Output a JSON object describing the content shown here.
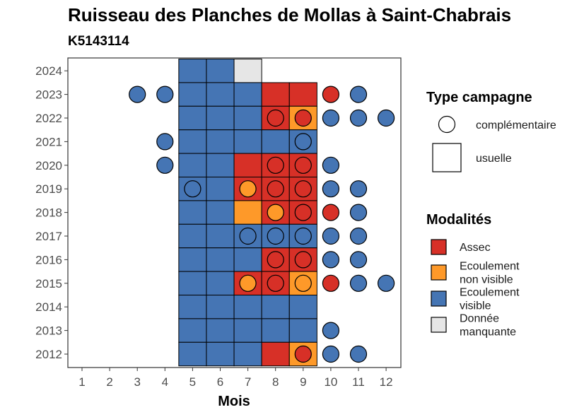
{
  "chart_data": {
    "type": "heatmap",
    "title": "Ruisseau des Planches de Mollas à Saint-Chabrais",
    "subtitle": "K5143114",
    "xlabel": "Mois",
    "ylabel": "",
    "x_ticks": [
      "1",
      "2",
      "3",
      "4",
      "5",
      "6",
      "7",
      "8",
      "9",
      "10",
      "11",
      "12"
    ],
    "y_ticks": [
      "2012",
      "2013",
      "2014",
      "2015",
      "2016",
      "2017",
      "2018",
      "2019",
      "2020",
      "2021",
      "2022",
      "2023",
      "2024"
    ],
    "grid": false,
    "legend_placement": "right",
    "colors": {
      "Assec": "#d73027",
      "Ecoulement non visible": "#fe9929",
      "Ecoulement visible": "#4575b4",
      "Donnée manquante": "#e6e6e6"
    },
    "legend_type": {
      "title": "Type campagne",
      "items": [
        {
          "label": "complémentaire",
          "shape": "circle"
        },
        {
          "label": "usuelle",
          "shape": "square"
        }
      ]
    },
    "legend_modalites": {
      "title": "Modalités",
      "items": [
        {
          "key": "Assec",
          "lines": [
            "Assec"
          ]
        },
        {
          "key": "Ecoulement non visible",
          "lines": [
            "Ecoulement",
            "non visible"
          ]
        },
        {
          "key": "Ecoulement visible",
          "lines": [
            "Ecoulement",
            "visible"
          ]
        },
        {
          "key": "Donnée manquante",
          "lines": [
            "Donnée",
            "manquante"
          ]
        }
      ]
    },
    "usuelle": [
      {
        "year": 2024,
        "month": 5,
        "status": "Ecoulement visible"
      },
      {
        "year": 2024,
        "month": 6,
        "status": "Ecoulement visible"
      },
      {
        "year": 2024,
        "month": 7,
        "status": "Donnée manquante"
      },
      {
        "year": 2023,
        "month": 5,
        "status": "Ecoulement visible"
      },
      {
        "year": 2023,
        "month": 6,
        "status": "Ecoulement visible"
      },
      {
        "year": 2023,
        "month": 7,
        "status": "Ecoulement visible"
      },
      {
        "year": 2023,
        "month": 8,
        "status": "Assec"
      },
      {
        "year": 2023,
        "month": 9,
        "status": "Assec"
      },
      {
        "year": 2022,
        "month": 5,
        "status": "Ecoulement visible"
      },
      {
        "year": 2022,
        "month": 6,
        "status": "Ecoulement visible"
      },
      {
        "year": 2022,
        "month": 7,
        "status": "Ecoulement visible"
      },
      {
        "year": 2022,
        "month": 8,
        "status": "Assec"
      },
      {
        "year": 2022,
        "month": 9,
        "status": "Ecoulement non visible"
      },
      {
        "year": 2021,
        "month": 5,
        "status": "Ecoulement visible"
      },
      {
        "year": 2021,
        "month": 6,
        "status": "Ecoulement visible"
      },
      {
        "year": 2021,
        "month": 7,
        "status": "Ecoulement visible"
      },
      {
        "year": 2021,
        "month": 8,
        "status": "Ecoulement visible"
      },
      {
        "year": 2021,
        "month": 9,
        "status": "Ecoulement visible"
      },
      {
        "year": 2020,
        "month": 5,
        "status": "Ecoulement visible"
      },
      {
        "year": 2020,
        "month": 6,
        "status": "Ecoulement visible"
      },
      {
        "year": 2020,
        "month": 7,
        "status": "Assec"
      },
      {
        "year": 2020,
        "month": 8,
        "status": "Assec"
      },
      {
        "year": 2020,
        "month": 9,
        "status": "Assec"
      },
      {
        "year": 2019,
        "month": 5,
        "status": "Ecoulement visible"
      },
      {
        "year": 2019,
        "month": 6,
        "status": "Ecoulement visible"
      },
      {
        "year": 2019,
        "month": 7,
        "status": "Assec"
      },
      {
        "year": 2019,
        "month": 8,
        "status": "Assec"
      },
      {
        "year": 2019,
        "month": 9,
        "status": "Assec"
      },
      {
        "year": 2018,
        "month": 5,
        "status": "Ecoulement visible"
      },
      {
        "year": 2018,
        "month": 6,
        "status": "Ecoulement visible"
      },
      {
        "year": 2018,
        "month": 7,
        "status": "Ecoulement non visible"
      },
      {
        "year": 2018,
        "month": 8,
        "status": "Assec"
      },
      {
        "year": 2018,
        "month": 9,
        "status": "Assec"
      },
      {
        "year": 2017,
        "month": 5,
        "status": "Ecoulement visible"
      },
      {
        "year": 2017,
        "month": 6,
        "status": "Ecoulement visible"
      },
      {
        "year": 2017,
        "month": 7,
        "status": "Ecoulement visible"
      },
      {
        "year": 2017,
        "month": 8,
        "status": "Ecoulement visible"
      },
      {
        "year": 2017,
        "month": 9,
        "status": "Ecoulement visible"
      },
      {
        "year": 2016,
        "month": 5,
        "status": "Ecoulement visible"
      },
      {
        "year": 2016,
        "month": 6,
        "status": "Ecoulement visible"
      },
      {
        "year": 2016,
        "month": 7,
        "status": "Ecoulement visible"
      },
      {
        "year": 2016,
        "month": 8,
        "status": "Assec"
      },
      {
        "year": 2016,
        "month": 9,
        "status": "Assec"
      },
      {
        "year": 2015,
        "month": 5,
        "status": "Ecoulement visible"
      },
      {
        "year": 2015,
        "month": 6,
        "status": "Ecoulement visible"
      },
      {
        "year": 2015,
        "month": 7,
        "status": "Assec"
      },
      {
        "year": 2015,
        "month": 8,
        "status": "Assec"
      },
      {
        "year": 2015,
        "month": 9,
        "status": "Ecoulement non visible"
      },
      {
        "year": 2014,
        "month": 5,
        "status": "Ecoulement visible"
      },
      {
        "year": 2014,
        "month": 6,
        "status": "Ecoulement visible"
      },
      {
        "year": 2014,
        "month": 7,
        "status": "Ecoulement visible"
      },
      {
        "year": 2014,
        "month": 8,
        "status": "Ecoulement visible"
      },
      {
        "year": 2014,
        "month": 9,
        "status": "Ecoulement visible"
      },
      {
        "year": 2013,
        "month": 5,
        "status": "Ecoulement visible"
      },
      {
        "year": 2013,
        "month": 6,
        "status": "Ecoulement visible"
      },
      {
        "year": 2013,
        "month": 7,
        "status": "Ecoulement visible"
      },
      {
        "year": 2013,
        "month": 8,
        "status": "Ecoulement visible"
      },
      {
        "year": 2013,
        "month": 9,
        "status": "Ecoulement visible"
      },
      {
        "year": 2012,
        "month": 5,
        "status": "Ecoulement visible"
      },
      {
        "year": 2012,
        "month": 6,
        "status": "Ecoulement visible"
      },
      {
        "year": 2012,
        "month": 7,
        "status": "Ecoulement visible"
      },
      {
        "year": 2012,
        "month": 8,
        "status": "Assec"
      },
      {
        "year": 2012,
        "month": 9,
        "status": "Ecoulement non visible"
      }
    ],
    "complementaire": [
      {
        "year": 2023,
        "month": 3,
        "status": "Ecoulement visible"
      },
      {
        "year": 2023,
        "month": 4,
        "status": "Ecoulement visible"
      },
      {
        "year": 2023,
        "month": 10,
        "status": "Assec"
      },
      {
        "year": 2023,
        "month": 11,
        "status": "Ecoulement visible"
      },
      {
        "year": 2022,
        "month": 8,
        "status": "Assec"
      },
      {
        "year": 2022,
        "month": 9,
        "status": "Assec"
      },
      {
        "year": 2022,
        "month": 10,
        "status": "Ecoulement visible"
      },
      {
        "year": 2022,
        "month": 11,
        "status": "Ecoulement visible"
      },
      {
        "year": 2022,
        "month": 12,
        "status": "Ecoulement visible"
      },
      {
        "year": 2021,
        "month": 4,
        "status": "Ecoulement visible"
      },
      {
        "year": 2021,
        "month": 9,
        "status": "Ecoulement visible"
      },
      {
        "year": 2020,
        "month": 4,
        "status": "Ecoulement visible"
      },
      {
        "year": 2020,
        "month": 8,
        "status": "Assec"
      },
      {
        "year": 2020,
        "month": 9,
        "status": "Assec"
      },
      {
        "year": 2020,
        "month": 10,
        "status": "Ecoulement visible"
      },
      {
        "year": 2019,
        "month": 5,
        "status": "Ecoulement visible"
      },
      {
        "year": 2019,
        "month": 7,
        "status": "Ecoulement non visible"
      },
      {
        "year": 2019,
        "month": 8,
        "status": "Assec"
      },
      {
        "year": 2019,
        "month": 9,
        "status": "Assec"
      },
      {
        "year": 2019,
        "month": 10,
        "status": "Ecoulement visible"
      },
      {
        "year": 2019,
        "month": 11,
        "status": "Ecoulement visible"
      },
      {
        "year": 2018,
        "month": 8,
        "status": "Ecoulement non visible"
      },
      {
        "year": 2018,
        "month": 9,
        "status": "Assec"
      },
      {
        "year": 2018,
        "month": 10,
        "status": "Assec"
      },
      {
        "year": 2018,
        "month": 11,
        "status": "Ecoulement visible"
      },
      {
        "year": 2017,
        "month": 7,
        "status": "Ecoulement visible"
      },
      {
        "year": 2017,
        "month": 8,
        "status": "Ecoulement visible"
      },
      {
        "year": 2017,
        "month": 9,
        "status": "Ecoulement visible"
      },
      {
        "year": 2017,
        "month": 10,
        "status": "Ecoulement visible"
      },
      {
        "year": 2017,
        "month": 11,
        "status": "Ecoulement visible"
      },
      {
        "year": 2016,
        "month": 8,
        "status": "Assec"
      },
      {
        "year": 2016,
        "month": 9,
        "status": "Assec"
      },
      {
        "year": 2016,
        "month": 10,
        "status": "Ecoulement visible"
      },
      {
        "year": 2016,
        "month": 11,
        "status": "Ecoulement visible"
      },
      {
        "year": 2015,
        "month": 7,
        "status": "Ecoulement non visible"
      },
      {
        "year": 2015,
        "month": 8,
        "status": "Assec"
      },
      {
        "year": 2015,
        "month": 9,
        "status": "Ecoulement non visible"
      },
      {
        "year": 2015,
        "month": 10,
        "status": "Assec"
      },
      {
        "year": 2015,
        "month": 11,
        "status": "Ecoulement visible"
      },
      {
        "year": 2015,
        "month": 12,
        "status": "Ecoulement visible"
      },
      {
        "year": 2013,
        "month": 10,
        "status": "Ecoulement visible"
      },
      {
        "year": 2012,
        "month": 9,
        "status": "Assec"
      },
      {
        "year": 2012,
        "month": 10,
        "status": "Ecoulement visible"
      },
      {
        "year": 2012,
        "month": 11,
        "status": "Ecoulement visible"
      }
    ]
  }
}
